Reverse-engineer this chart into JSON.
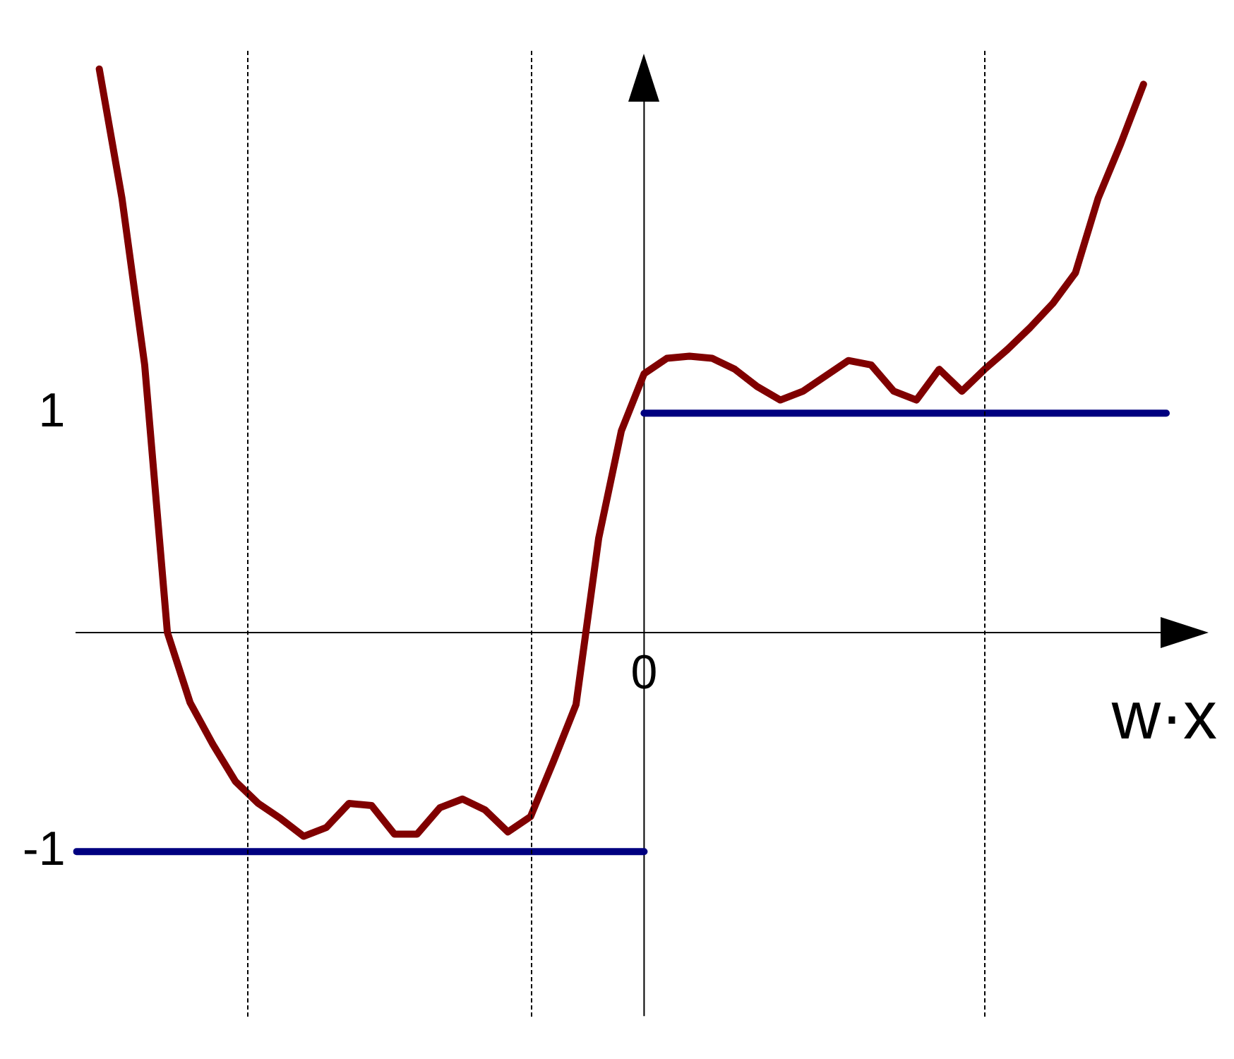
{
  "chart_data": {
    "type": "line",
    "xlabel": "w·x",
    "categories": [
      null,
      null,
      null,
      null,
      null,
      null,
      null,
      null,
      null,
      null,
      null,
      null,
      null,
      null,
      null,
      null,
      null,
      null,
      null,
      null,
      null,
      null,
      null,
      null,
      null,
      "0",
      null,
      null,
      null,
      null,
      null,
      null,
      null,
      null,
      null,
      null,
      null,
      null,
      null,
      null,
      null,
      null,
      null,
      null,
      null,
      null,
      null,
      null,
      null
    ],
    "ylim": [
      -1.75,
      2.65
    ],
    "yticks": [
      -1,
      1
    ],
    "grid": false,
    "legend": false,
    "marker": "none",
    "line_style": "solid",
    "series": [
      {
        "color": "#000080",
        "values": [
          -1,
          -1,
          -1,
          -1,
          -1,
          -1,
          -1,
          -1,
          -1,
          -1,
          -1,
          -1,
          -1,
          -1,
          -1,
          -1,
          -1,
          -1,
          -1,
          -1,
          -1,
          -1,
          -1,
          -1,
          -1,
          -1,
          null,
          null,
          null,
          null,
          null,
          null,
          null,
          null,
          null,
          null,
          null,
          null,
          null,
          null,
          null,
          null,
          null,
          null,
          null,
          null,
          null,
          null,
          null
        ]
      },
      {
        "color": "#000080",
        "values": [
          null,
          null,
          null,
          null,
          null,
          null,
          null,
          null,
          null,
          null,
          null,
          null,
          null,
          null,
          null,
          null,
          null,
          null,
          null,
          null,
          null,
          null,
          null,
          null,
          null,
          1,
          1,
          1,
          1,
          1,
          1,
          1,
          1,
          1,
          1,
          1,
          1,
          1,
          1,
          1,
          1,
          1,
          1,
          1,
          1,
          1,
          1,
          1,
          1
        ]
      },
      {
        "color": "#800000",
        "values": [
          null,
          2.57,
          1.98,
          1.22,
          0,
          -0.32,
          -0.51,
          -0.68,
          -0.78,
          -0.85,
          -0.93,
          -0.89,
          -0.78,
          -0.79,
          -0.92,
          -0.92,
          -0.8,
          -0.76,
          -0.81,
          -0.91,
          -0.84,
          -0.59,
          -0.33,
          0.43,
          0.92,
          1.18,
          1.25,
          1.26,
          1.25,
          1.2,
          1.12,
          1.06,
          1.1,
          1.17,
          1.24,
          1.22,
          1.1,
          1.06,
          1.2,
          1.1,
          1.2,
          1.29,
          1.39,
          1.5,
          1.64,
          1.98,
          2.23,
          2.5,
          null
        ]
      }
    ]
  }
}
